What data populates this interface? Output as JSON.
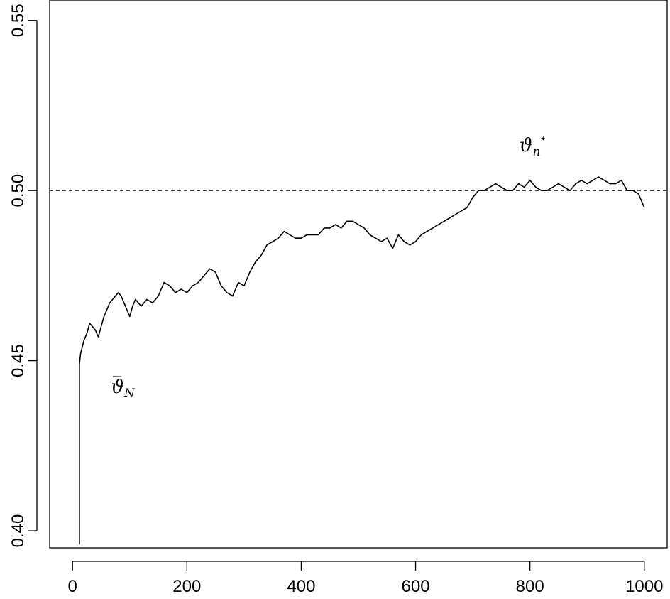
{
  "chart_data": {
    "type": "line",
    "title": "",
    "xlabel": "",
    "ylabel": "",
    "xlim": [
      -40,
      1040
    ],
    "ylim": [
      0.395,
      0.556
    ],
    "x_ticks": [
      0,
      200,
      400,
      600,
      800,
      1000
    ],
    "x_tick_labels": [
      "0",
      "200",
      "400",
      "600",
      "800",
      "1000"
    ],
    "y_ticks": [
      0.4,
      0.45,
      0.5,
      0.55
    ],
    "y_tick_labels": [
      "0.40",
      "0.45",
      "0.50",
      "0.55"
    ],
    "grid": false,
    "reference_line": {
      "y": 0.5,
      "style": "dashed"
    },
    "annotations": [
      {
        "base": "ϑ",
        "sub": "n",
        "sup": "⋆",
        "bar": false,
        "x": 800,
        "y": 0.5115
      },
      {
        "base": "ϑ",
        "sub": "N",
        "sup": "",
        "bar": true,
        "x": 88,
        "y": 0.4405
      }
    ],
    "series": [
      {
        "color": "#000000",
        "x": [
          12,
          12,
          14,
          20,
          25,
          30,
          35,
          40,
          45,
          50,
          55,
          60,
          65,
          70,
          75,
          80,
          85,
          90,
          95,
          100,
          105,
          110,
          115,
          120,
          130,
          140,
          150,
          160,
          170,
          180,
          190,
          200,
          210,
          220,
          230,
          240,
          250,
          260,
          270,
          280,
          290,
          300,
          310,
          320,
          330,
          340,
          350,
          360,
          370,
          380,
          390,
          400,
          410,
          420,
          430,
          440,
          450,
          460,
          470,
          480,
          490,
          500,
          510,
          520,
          530,
          540,
          550,
          560,
          570,
          580,
          590,
          600,
          610,
          620,
          630,
          640,
          650,
          660,
          670,
          680,
          690,
          700,
          710,
          720,
          730,
          740,
          750,
          760,
          770,
          780,
          790,
          800,
          810,
          820,
          830,
          840,
          850,
          860,
          870,
          880,
          890,
          900,
          910,
          920,
          930,
          940,
          950,
          960,
          970,
          980,
          990,
          1000
        ],
        "y": [
          0.396,
          0.449,
          0.452,
          0.456,
          0.458,
          0.461,
          0.46,
          0.459,
          0.457,
          0.46,
          0.463,
          0.465,
          0.467,
          0.468,
          0.469,
          0.47,
          0.469,
          0.467,
          0.465,
          0.463,
          0.466,
          0.468,
          0.467,
          0.466,
          0.468,
          0.467,
          0.469,
          0.473,
          0.472,
          0.47,
          0.471,
          0.47,
          0.472,
          0.473,
          0.475,
          0.477,
          0.476,
          0.472,
          0.47,
          0.469,
          0.473,
          0.472,
          0.476,
          0.479,
          0.481,
          0.484,
          0.485,
          0.486,
          0.488,
          0.487,
          0.486,
          0.486,
          0.487,
          0.487,
          0.487,
          0.489,
          0.489,
          0.49,
          0.489,
          0.491,
          0.491,
          0.49,
          0.489,
          0.487,
          0.486,
          0.485,
          0.486,
          0.483,
          0.487,
          0.485,
          0.484,
          0.485,
          0.487,
          0.488,
          0.489,
          0.49,
          0.491,
          0.492,
          0.493,
          0.494,
          0.495,
          0.498,
          0.5,
          0.5,
          0.501,
          0.502,
          0.501,
          0.5,
          0.5,
          0.502,
          0.501,
          0.503,
          0.501,
          0.5,
          0.5,
          0.501,
          0.502,
          0.501,
          0.5,
          0.502,
          0.503,
          0.502,
          0.503,
          0.504,
          0.503,
          0.502,
          0.502,
          0.503,
          0.5,
          0.5,
          0.499,
          0.495
        ]
      }
    ]
  }
}
